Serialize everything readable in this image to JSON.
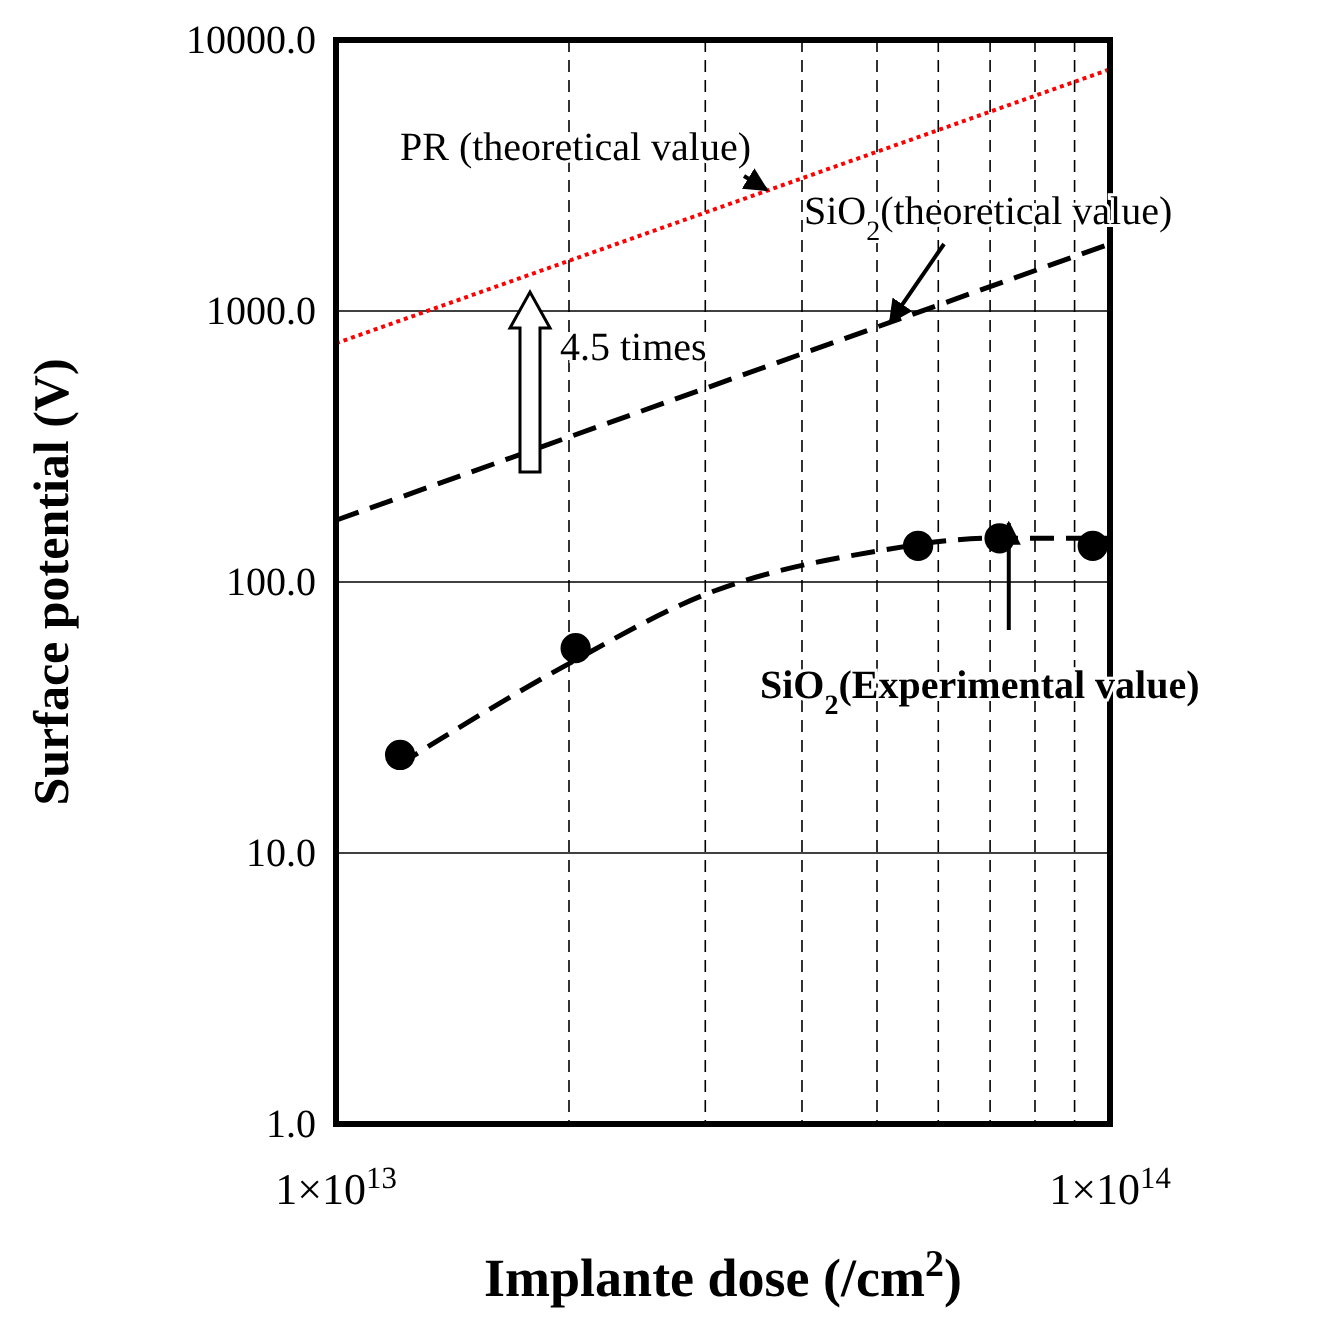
{
  "chart_data": {
    "type": "line",
    "xlabel": "Implante dose (/cm$^{2}$)",
    "ylabel": "Surface potential (V)",
    "log": "xy",
    "grid": true,
    "xlim": [
      10000000000000.0,
      100000000000000.0
    ],
    "ylim": [
      1,
      10000
    ],
    "xticks": [
      {
        "value": 10000000000000.0,
        "label": "1×10$^{13}$"
      },
      {
        "value": 20000000000000.0,
        "label": null
      },
      {
        "value": 30000000000000.0,
        "label": null
      },
      {
        "value": 40000000000000.0,
        "label": null
      },
      {
        "value": 50000000000000.0,
        "label": null
      },
      {
        "value": 60000000000000.0,
        "label": null
      },
      {
        "value": 70000000000000.0,
        "label": null
      },
      {
        "value": 80000000000000.0,
        "label": null
      },
      {
        "value": 90000000000000.0,
        "label": null
      },
      {
        "value": 100000000000000.0,
        "label": "1×10$^{14}$"
      }
    ],
    "yticks": [
      {
        "value": 1,
        "label": "1.0"
      },
      {
        "value": 10,
        "label": "10.0"
      },
      {
        "value": 100,
        "label": "100.0"
      },
      {
        "value": 1000,
        "label": "1000.0"
      },
      {
        "value": 10000,
        "label": "10000.0"
      }
    ],
    "series": [
      {
        "type": "line",
        "color": "#ff0000",
        "line_style": "dotted",
        "marker": "none",
        "x": [
          10000000000000.0,
          100000000000000.0
        ],
        "values": [
          760,
          7800
        ]
      },
      {
        "type": "line",
        "color": "#000000",
        "line_style": "dashed",
        "marker": "none",
        "x": [
          10000000000000.0,
          100000000000000.0
        ],
        "values": [
          169,
          1770
        ]
      },
      {
        "type": "line",
        "color": "#000000",
        "line_style": "dashed",
        "marker": "none",
        "x": [
          12000000000000.0,
          20000000000000.0,
          30000000000000.0,
          50000000000000.0,
          70000000000000.0,
          100000000000000.0
        ],
        "values": [
          21,
          50,
          90,
          130,
          145,
          145
        ]
      },
      {
        "type": "scatter",
        "color": "#000000",
        "marker": "circle",
        "x": [
          12100000000000.0,
          20400000000000.0,
          56500000000000.0,
          72000000000000.0,
          95000000000000.0
        ],
        "values": [
          23,
          57,
          136,
          145,
          136
        ]
      }
    ],
    "annotations": [
      {
        "text": "PR (theoretical value)",
        "x": 36000000000000.0,
        "y": 2800
      },
      {
        "text": "SiO$_{2}$(theoretical value)",
        "x": 52000000000000.0,
        "y": 910
      },
      "4.5 times",
      {
        "text": "SiO$_{2}$(Experimental value)",
        "x": 74000000000000.0,
        "y": 165
      }
    ]
  }
}
